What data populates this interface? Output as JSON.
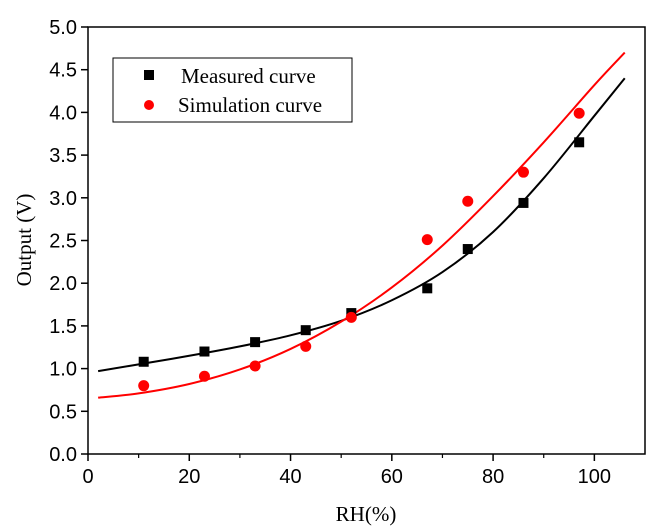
{
  "chart_data": {
    "type": "scatter",
    "title": "",
    "xlabel": "RH(%)",
    "ylabel": "Output (V)",
    "xlim": [
      0,
      110
    ],
    "ylim": [
      0.0,
      5.0
    ],
    "xticks": [
      0,
      20,
      40,
      60,
      80,
      100
    ],
    "xtick_labels": [
      "0",
      "20",
      "40",
      "60",
      "80",
      "100"
    ],
    "yticks": [
      0.0,
      0.5,
      1.0,
      1.5,
      2.0,
      2.5,
      3.0,
      3.5,
      4.0,
      4.5,
      5.0
    ],
    "ytick_labels": [
      "0.0",
      "0.5",
      "1.0",
      "1.5",
      "2.0",
      "2.5",
      "3.0",
      "3.5",
      "4.0",
      "4.5",
      "5.0"
    ],
    "grid": false,
    "legend_position": "top-left",
    "series": [
      {
        "name": "Measured curve",
        "color": "#000000",
        "marker": "square",
        "x": [
          11,
          23,
          33,
          43,
          52,
          67,
          75,
          86,
          97
        ],
        "y": [
          1.08,
          1.2,
          1.31,
          1.45,
          1.65,
          1.94,
          2.4,
          2.94,
          3.65
        ],
        "fit_curve": {
          "x": [
            2,
            10,
            20,
            30,
            40,
            50,
            60,
            70,
            80,
            90,
            100,
            106
          ],
          "y": [
            0.97,
            1.05,
            1.15,
            1.26,
            1.39,
            1.56,
            1.8,
            2.13,
            2.6,
            3.23,
            3.96,
            4.4
          ]
        }
      },
      {
        "name": "Simulation curve",
        "color": "#ff0000",
        "marker": "circle",
        "x": [
          11,
          23,
          33,
          43,
          52,
          67,
          75,
          86,
          97
        ],
        "y": [
          0.8,
          0.91,
          1.03,
          1.26,
          1.6,
          2.51,
          2.96,
          3.3,
          3.99
        ],
        "fit_curve": {
          "x": [
            2,
            10,
            20,
            30,
            40,
            50,
            60,
            70,
            80,
            90,
            100,
            106
          ],
          "y": [
            0.66,
            0.71,
            0.82,
            0.99,
            1.23,
            1.55,
            1.95,
            2.44,
            3.02,
            3.65,
            4.32,
            4.7
          ]
        }
      }
    ]
  }
}
